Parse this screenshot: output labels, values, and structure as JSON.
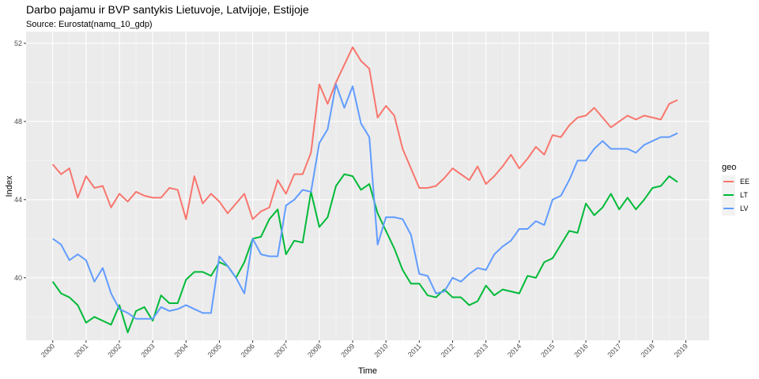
{
  "chart_data": {
    "type": "line",
    "title": "Darbo pajamu ir BVP santykis Lietuvoje, Latvijoje, Estijoje",
    "subtitle": "Source: Eurostat(namq_10_gdp)",
    "xlabel": "Time",
    "ylabel": "Index",
    "xlim": [
      1999.2,
      2019.7
    ],
    "ylim": [
      36.8,
      52.6
    ],
    "x_ticks": [
      "2000",
      "2001",
      "2002",
      "2003",
      "2004",
      "2005",
      "2006",
      "2007",
      "2008",
      "2009",
      "2010",
      "2011",
      "2012",
      "2013",
      "2014",
      "2015",
      "2016",
      "2017",
      "2018",
      "2019"
    ],
    "y_ticks": [
      40,
      44,
      48,
      52
    ],
    "legend": {
      "title": "geo",
      "position": "right"
    },
    "grid": true,
    "x_start": 2000.0,
    "x_step": 0.25,
    "series": [
      {
        "name": "EE",
        "color": "#F8766D",
        "values": [
          45.8,
          45.3,
          45.6,
          44.1,
          45.2,
          44.6,
          44.7,
          43.6,
          44.3,
          43.9,
          44.4,
          44.2,
          44.1,
          44.1,
          44.6,
          44.5,
          43.0,
          45.2,
          43.8,
          44.3,
          43.9,
          43.3,
          43.8,
          44.3,
          43.0,
          43.4,
          43.6,
          45.0,
          44.3,
          45.3,
          45.3,
          46.4,
          49.9,
          48.9,
          50.0,
          50.9,
          51.8,
          51.1,
          50.7,
          48.2,
          48.8,
          48.3,
          46.6,
          45.6,
          44.6,
          44.6,
          44.7,
          45.1,
          45.6,
          45.3,
          45.0,
          45.7,
          44.8,
          45.2,
          45.7,
          46.3,
          45.6,
          46.1,
          46.7,
          46.3,
          47.3,
          47.2,
          47.8,
          48.2,
          48.3,
          48.7,
          48.2,
          47.7,
          48.0,
          48.3,
          48.1,
          48.3,
          48.2,
          48.1,
          48.9,
          49.1
        ]
      },
      {
        "name": "LT",
        "color": "#00BA38",
        "values": [
          39.8,
          39.2,
          39.0,
          38.6,
          37.7,
          38.0,
          37.8,
          37.6,
          38.6,
          37.2,
          38.3,
          38.5,
          37.8,
          39.1,
          38.7,
          38.7,
          39.9,
          40.3,
          40.3,
          40.1,
          40.8,
          40.6,
          40.0,
          40.8,
          42.0,
          42.1,
          43.0,
          43.5,
          41.2,
          41.9,
          41.8,
          44.4,
          42.6,
          43.1,
          44.7,
          45.3,
          45.2,
          44.5,
          44.8,
          43.3,
          42.4,
          41.5,
          40.4,
          39.7,
          39.7,
          39.1,
          39.0,
          39.4,
          39.0,
          39.0,
          38.6,
          38.8,
          39.6,
          39.1,
          39.4,
          39.3,
          39.2,
          40.1,
          40.0,
          40.8,
          41.0,
          41.7,
          42.4,
          42.3,
          43.8,
          43.2,
          43.6,
          44.3,
          43.5,
          44.1,
          43.5,
          44.0,
          44.6,
          44.7,
          45.2,
          44.9
        ]
      },
      {
        "name": "LV",
        "color": "#619CFF",
        "values": [
          42.0,
          41.7,
          40.9,
          41.2,
          40.9,
          39.8,
          40.5,
          39.2,
          38.4,
          38.2,
          37.9,
          37.9,
          37.9,
          38.5,
          38.3,
          38.4,
          38.6,
          38.4,
          38.2,
          38.2,
          41.1,
          40.6,
          40.0,
          39.2,
          42.0,
          41.2,
          41.1,
          41.1,
          43.7,
          44.0,
          44.5,
          44.4,
          46.9,
          47.6,
          49.9,
          48.7,
          49.8,
          47.9,
          47.2,
          41.7,
          43.1,
          43.1,
          43.0,
          42.2,
          40.2,
          40.1,
          39.2,
          39.3,
          40.0,
          39.8,
          40.2,
          40.5,
          40.4,
          41.2,
          41.6,
          41.9,
          42.5,
          42.5,
          42.9,
          42.7,
          44.0,
          44.2,
          45.0,
          46.0,
          46.0,
          46.6,
          47.0,
          46.6,
          46.6,
          46.6,
          46.4,
          46.8,
          47.0,
          47.2,
          47.2,
          47.4
        ]
      }
    ]
  }
}
